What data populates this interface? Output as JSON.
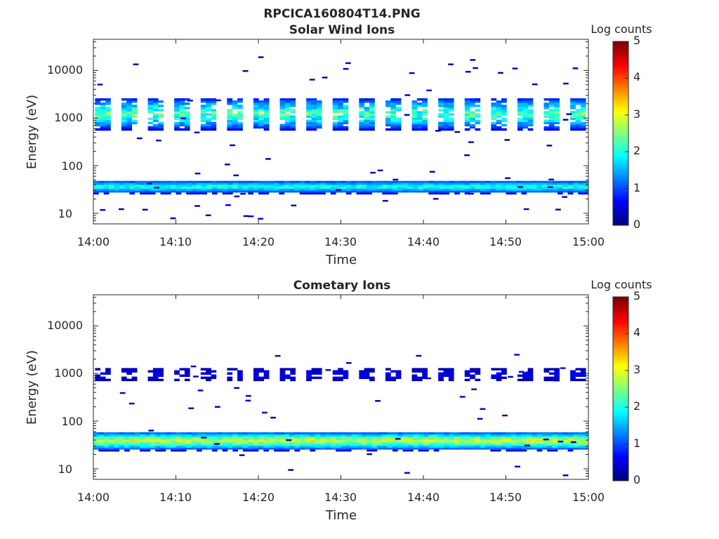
{
  "figure": {
    "title": "RPCICA160804T14.PNG"
  },
  "colorbar": {
    "label": "Log counts",
    "range": [
      0,
      5
    ],
    "ticks": [
      "0",
      "1",
      "2",
      "3",
      "4",
      "5"
    ],
    "colormap": "jet"
  },
  "chart_data": [
    {
      "type": "heatmap",
      "title": "Solar Wind Ions",
      "xlabel": "Time",
      "ylabel": "Energy (eV)",
      "xlim": [
        "14:00",
        "15:00"
      ],
      "ylim": [
        6,
        45000
      ],
      "yscale": "log",
      "x_ticks": [
        "14:00",
        "14:10",
        "14:20",
        "14:30",
        "14:40",
        "14:50",
        "15:00"
      ],
      "y_ticks": [
        "10",
        "100",
        "1000",
        "10000"
      ],
      "grid": false,
      "colorbar": true,
      "features": [
        {
          "desc": "continuous low-energy band",
          "energy_range": [
            27,
            45
          ],
          "log_counts": [
            0.5,
            2.2
          ]
        },
        {
          "desc": "periodic bursts around 1 keV, repeating about every 3.2 min",
          "energy_range": [
            550,
            2500
          ],
          "log_counts": [
            0.5,
            2.6
          ]
        },
        {
          "desc": "sparse single counts",
          "energy_range": [
            7,
            20000
          ],
          "log_counts": [
            0.2,
            0.5
          ]
        }
      ]
    },
    {
      "type": "heatmap",
      "title": "Cometary Ions",
      "xlabel": "Time",
      "ylabel": "Energy (eV)",
      "xlim": [
        "14:00",
        "15:00"
      ],
      "ylim": [
        6,
        45000
      ],
      "yscale": "log",
      "x_ticks": [
        "14:00",
        "14:10",
        "14:20",
        "14:30",
        "14:40",
        "14:50",
        "15:00"
      ],
      "y_ticks": [
        "10",
        "100",
        "1000",
        "10000"
      ],
      "grid": false,
      "colorbar": true,
      "features": [
        {
          "desc": "continuous low-energy band",
          "energy_range": [
            25,
            55
          ],
          "log_counts": [
            0.5,
            3.1
          ]
        },
        {
          "desc": "periodic weak bursts around 1 keV",
          "energy_range": [
            700,
            1200
          ],
          "log_counts": [
            0.2,
            0.6
          ]
        },
        {
          "desc": "sparse single counts",
          "energy_range": [
            7,
            2500
          ],
          "log_counts": [
            0.2,
            0.5
          ]
        }
      ]
    }
  ]
}
